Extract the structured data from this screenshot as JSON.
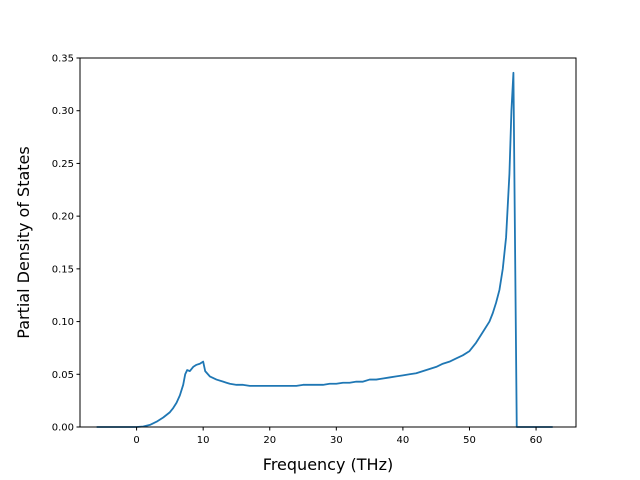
{
  "chart_data": {
    "type": "line",
    "title": "",
    "xlabel": "Frequency (THz)",
    "ylabel": "Partial Density of States",
    "xlim": [
      -8.5,
      66.0
    ],
    "ylim": [
      0.0,
      0.35
    ],
    "grid": false,
    "x_ticks": [
      0,
      10,
      20,
      30,
      40,
      50,
      60
    ],
    "x_tick_labels": [
      "0",
      "10",
      "20",
      "30",
      "40",
      "50",
      "60"
    ],
    "y_ticks": [
      0.0,
      0.05,
      0.1,
      0.15,
      0.2,
      0.25,
      0.3,
      0.35
    ],
    "y_tick_labels": [
      "0.00",
      "0.05",
      "0.10",
      "0.15",
      "0.20",
      "0.25",
      "0.30",
      "0.35"
    ],
    "series": [
      {
        "color": "#1f77b4",
        "x": [
          -6,
          0,
          1,
          2,
          3,
          4,
          5,
          5.5,
          6,
          6.5,
          7,
          7.3,
          7.6,
          8,
          8.5,
          9,
          9.5,
          10,
          10.3,
          11,
          12,
          13,
          13.5,
          14,
          15,
          16,
          17,
          18,
          19,
          20,
          21,
          22,
          23,
          24,
          25,
          26,
          27,
          28,
          29,
          30,
          31,
          32,
          33,
          34,
          35,
          36,
          37,
          38,
          39,
          40,
          41,
          42,
          43,
          44,
          45,
          46,
          47,
          48,
          49,
          50,
          51,
          52,
          53,
          53.5,
          54,
          54.5,
          55,
          55.5,
          56,
          56.3,
          56.6,
          57.1,
          58,
          60,
          62.5
        ],
        "y": [
          0,
          0,
          0.0005,
          0.002,
          0.005,
          0.009,
          0.014,
          0.018,
          0.023,
          0.03,
          0.04,
          0.05,
          0.054,
          0.053,
          0.057,
          0.059,
          0.06,
          0.062,
          0.053,
          0.048,
          0.045,
          0.043,
          0.042,
          0.041,
          0.04,
          0.04,
          0.039,
          0.039,
          0.039,
          0.039,
          0.039,
          0.039,
          0.039,
          0.039,
          0.04,
          0.04,
          0.04,
          0.04,
          0.041,
          0.041,
          0.042,
          0.042,
          0.043,
          0.043,
          0.045,
          0.045,
          0.046,
          0.047,
          0.048,
          0.049,
          0.05,
          0.051,
          0.053,
          0.055,
          0.057,
          0.06,
          0.062,
          0.065,
          0.068,
          0.072,
          0.08,
          0.09,
          0.1,
          0.108,
          0.118,
          0.13,
          0.15,
          0.18,
          0.24,
          0.3,
          0.336,
          0,
          0,
          0,
          0
        ]
      }
    ]
  }
}
